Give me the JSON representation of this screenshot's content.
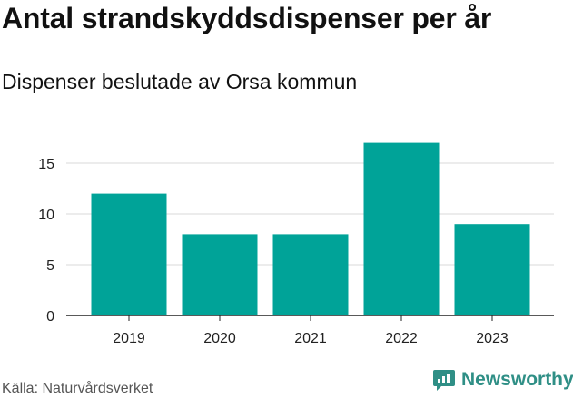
{
  "header": {
    "title": "Antal strandskyddsdispenser per år",
    "subtitle": "Dispenser beslutade av Orsa kommun"
  },
  "footer": {
    "source": "Källa: Naturvårdsverket",
    "brand": "Newsworthy",
    "brand_icon": "newsworthy-logo-icon"
  },
  "colors": {
    "bar": "#00a398",
    "grid": "#d9d9d9",
    "axis": "#222222",
    "brand": "#2f8f86"
  },
  "chart_data": {
    "type": "bar",
    "title": "Antal strandskyddsdispenser per år",
    "subtitle": "Dispenser beslutade av Orsa kommun",
    "categories": [
      "2019",
      "2020",
      "2021",
      "2022",
      "2023"
    ],
    "values": [
      12,
      8,
      8,
      17,
      9
    ],
    "xlabel": "",
    "ylabel": "",
    "ylim": [
      0,
      17
    ],
    "yticks": [
      0,
      5,
      10,
      15
    ],
    "grid": true,
    "legend": "none"
  }
}
